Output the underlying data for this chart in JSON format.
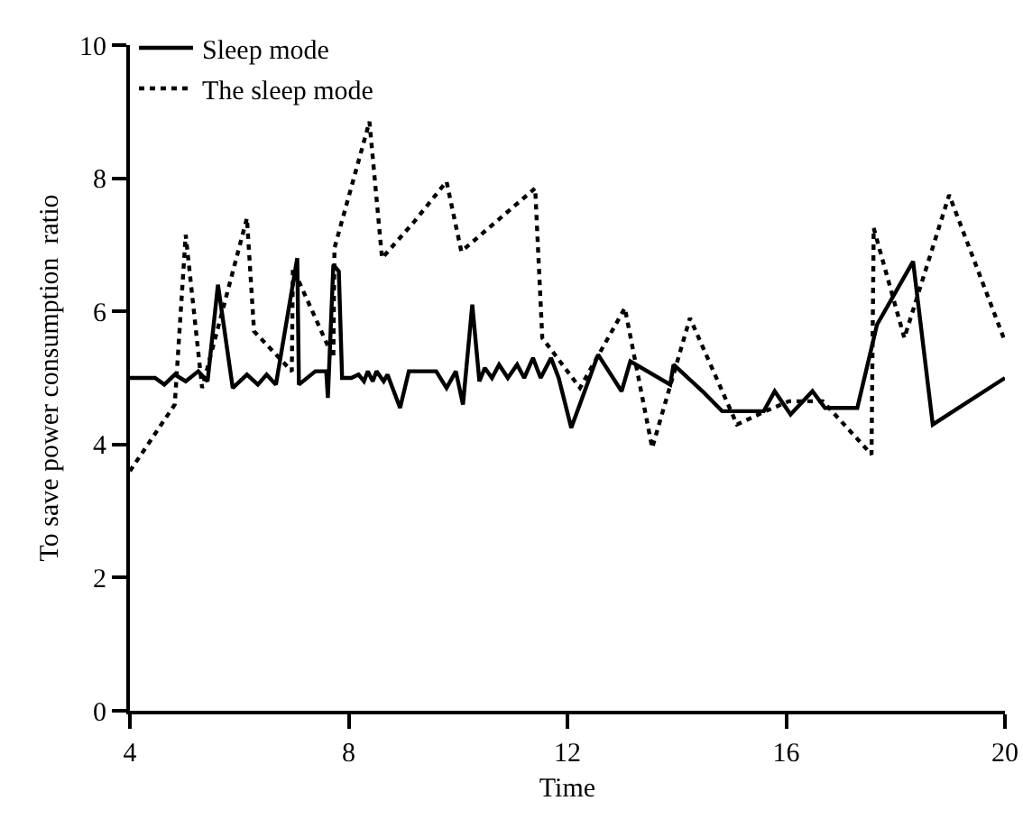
{
  "chart_data": {
    "type": "line",
    "xlabel": "Time",
    "ylabel": "To save power consumption  ratio",
    "xlim": [
      4,
      20
    ],
    "xticks": [
      4,
      8,
      12,
      16,
      20
    ],
    "ylim": [
      0,
      10
    ],
    "yticks": [
      0,
      2,
      4,
      6,
      8,
      10
    ],
    "grid": false,
    "legend": "top left",
    "marker": "none",
    "series": [
      {
        "name": "Sleep mode",
        "color": "#000000",
        "line_style": "solid",
        "x": [
          4.0,
          4.46,
          4.63,
          4.82,
          5.02,
          5.25,
          5.42,
          5.61,
          5.88,
          6.14,
          6.34,
          6.5,
          6.67,
          7.06,
          7.09,
          7.39,
          7.59,
          7.62,
          7.72,
          7.82,
          7.88,
          8.05,
          8.18,
          8.28,
          8.35,
          8.44,
          8.51,
          8.64,
          8.71,
          8.94,
          9.1,
          9.6,
          9.79,
          9.96,
          10.09,
          10.26,
          10.39,
          10.49,
          10.62,
          10.75,
          10.91,
          11.08,
          11.21,
          11.37,
          11.51,
          11.7,
          11.84,
          12.07,
          12.56,
          12.99,
          13.15,
          13.88,
          13.94,
          14.47,
          14.83,
          15.59,
          15.79,
          16.08,
          16.48,
          16.71,
          17.3,
          17.66,
          18.32,
          18.68,
          20.0
        ],
        "values": [
          5.0,
          5.0,
          4.9,
          5.05,
          4.95,
          5.1,
          4.95,
          6.4,
          4.85,
          5.05,
          4.9,
          5.05,
          4.9,
          6.8,
          4.9,
          5.1,
          5.1,
          4.7,
          6.7,
          6.6,
          5.0,
          5.0,
          5.05,
          4.95,
          5.1,
          4.95,
          5.1,
          4.95,
          5.05,
          4.55,
          5.1,
          5.1,
          4.85,
          5.1,
          4.6,
          6.1,
          4.95,
          5.15,
          5.0,
          5.2,
          5.0,
          5.2,
          5.0,
          5.3,
          5.0,
          5.3,
          5.0,
          4.25,
          5.35,
          4.8,
          5.25,
          4.9,
          5.2,
          4.8,
          4.5,
          4.5,
          4.8,
          4.45,
          4.8,
          4.55,
          4.55,
          5.8,
          6.75,
          4.3,
          5.0
        ]
      },
      {
        "name": "The sleep mode",
        "color": "#000000",
        "line_style": "dotted",
        "x": [
          4.0,
          4.82,
          5.02,
          5.32,
          6.14,
          6.27,
          6.96,
          6.98,
          7.72,
          7.74,
          8.38,
          8.61,
          9.2,
          9.79,
          10.06,
          11.41,
          11.54,
          12.23,
          13.05,
          13.55,
          14.24,
          15.1,
          15.62,
          16.05,
          16.67,
          17.56,
          17.6,
          18.16,
          18.98,
          20.0
        ],
        "values": [
          3.6,
          4.6,
          7.15,
          4.85,
          7.4,
          5.7,
          5.1,
          6.65,
          5.3,
          6.95,
          8.85,
          6.8,
          7.35,
          7.95,
          6.9,
          7.85,
          5.6,
          4.85,
          6.05,
          3.95,
          5.9,
          4.3,
          4.5,
          4.65,
          4.65,
          3.85,
          7.25,
          5.6,
          7.75,
          5.55
        ]
      }
    ]
  }
}
